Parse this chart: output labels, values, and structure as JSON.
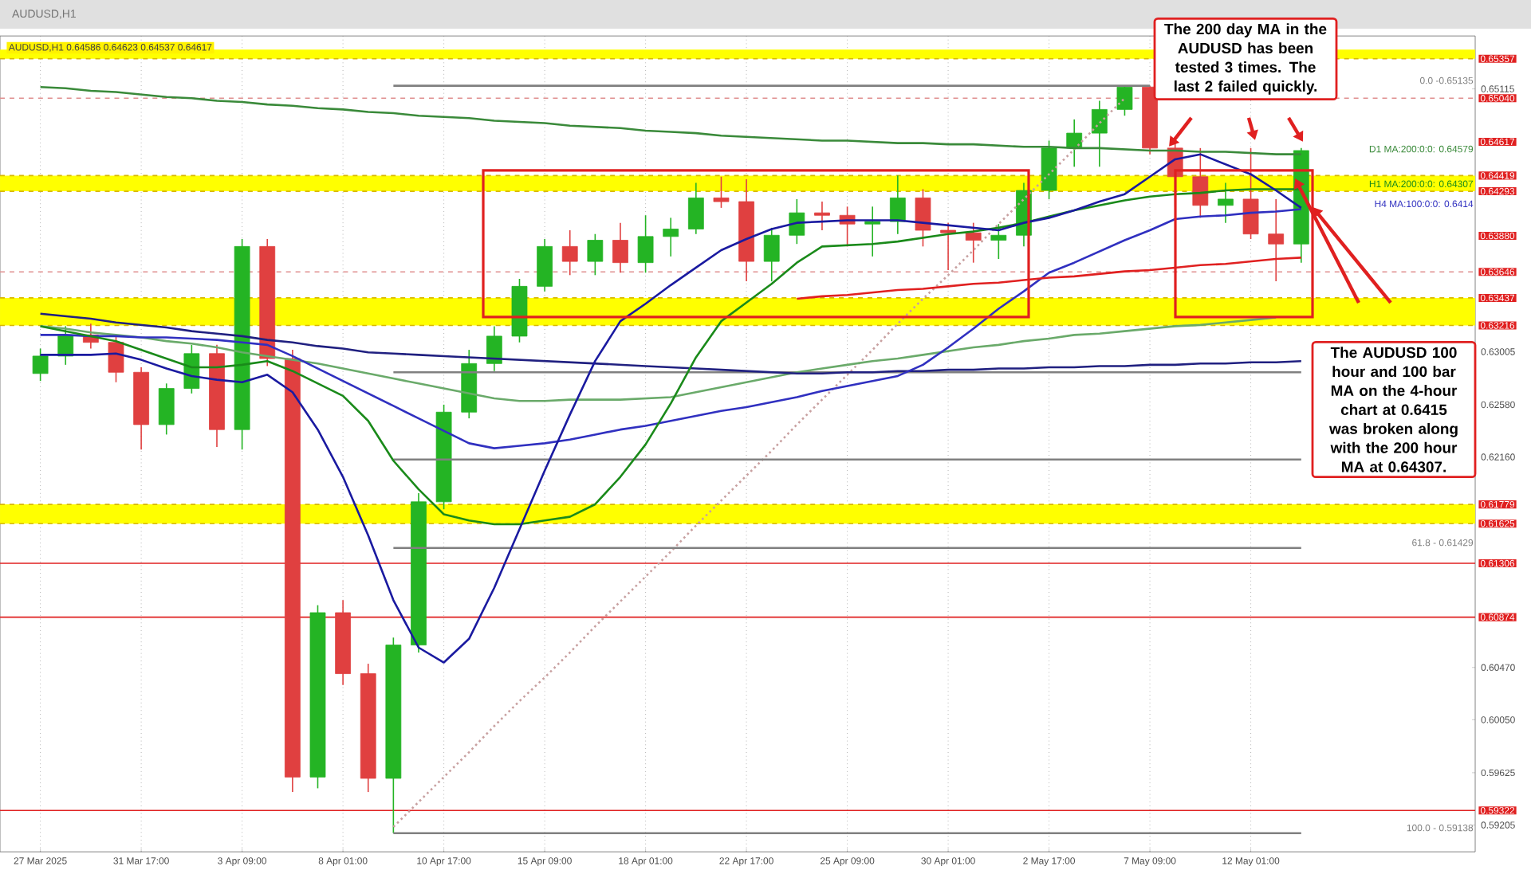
{
  "chart_data": {
    "type": "candlestick",
    "title": "AUDUSD,H1",
    "subtitle": "AUDUSD,H1  0.64586 0.64623 0.64537 0.64617",
    "categories": [
      "27 Mar 2025",
      null,
      null,
      null,
      "31 Mar 17:00",
      null,
      null,
      null,
      "3 Apr 09:00",
      null,
      null,
      null,
      "8 Apr 01:00",
      null,
      null,
      null,
      "10 Apr 17:00",
      null,
      null,
      null,
      "15 Apr 09:00",
      null,
      null,
      null,
      "18 Apr 01:00",
      null,
      null,
      null,
      "22 Apr 17:00",
      null,
      null,
      null,
      "25 Apr 09:00",
      null,
      null,
      null,
      "30 Apr 01:00",
      null,
      null,
      null,
      "2 May 17:00",
      null,
      null,
      null,
      "7 May 09:00",
      null,
      null,
      null,
      "12 May 01:00",
      null,
      null
    ],
    "ohlc": [
      [
        0.6283,
        0.6303,
        0.6277,
        0.6297
      ],
      [
        0.6297,
        0.6321,
        0.629,
        0.6314
      ],
      [
        0.6314,
        0.6323,
        0.6303,
        0.6308
      ],
      [
        0.6308,
        0.6313,
        0.6276,
        0.6284
      ],
      [
        0.6284,
        0.6288,
        0.6222,
        0.6242
      ],
      [
        0.6242,
        0.6275,
        0.6234,
        0.6271
      ],
      [
        0.6271,
        0.6306,
        0.6267,
        0.6299
      ],
      [
        0.6299,
        0.6306,
        0.6224,
        0.6238
      ],
      [
        0.6238,
        0.6391,
        0.6222,
        0.6385
      ],
      [
        0.6385,
        0.6391,
        0.6289,
        0.6295
      ],
      [
        0.6295,
        0.6302,
        0.5947,
        0.5959
      ],
      [
        0.5959,
        0.6097,
        0.595,
        0.6091
      ],
      [
        0.6091,
        0.6101,
        0.6033,
        0.6042
      ],
      [
        0.6042,
        0.605,
        0.5947,
        0.5958
      ],
      [
        0.5958,
        0.6071,
        0.5914,
        0.6065
      ],
      [
        0.6065,
        0.6187,
        0.6059,
        0.618
      ],
      [
        0.618,
        0.6258,
        0.6174,
        0.6252
      ],
      [
        0.6252,
        0.6302,
        0.6247,
        0.6291
      ],
      [
        0.6291,
        0.6321,
        0.6285,
        0.6313
      ],
      [
        0.6313,
        0.6359,
        0.6308,
        0.6353
      ],
      [
        0.6353,
        0.6391,
        0.6349,
        0.6385
      ],
      [
        0.6385,
        0.6398,
        0.6362,
        0.6373
      ],
      [
        0.6373,
        0.6395,
        0.6362,
        0.639
      ],
      [
        0.639,
        0.6404,
        0.6364,
        0.6372
      ],
      [
        0.6372,
        0.641,
        0.6364,
        0.6393
      ],
      [
        0.6393,
        0.6408,
        0.6377,
        0.6399
      ],
      [
        0.6399,
        0.6436,
        0.6395,
        0.6424
      ],
      [
        0.6424,
        0.6441,
        0.6416,
        0.6421
      ],
      [
        0.6421,
        0.6439,
        0.6357,
        0.6373
      ],
      [
        0.6373,
        0.64,
        0.6357,
        0.6394
      ],
      [
        0.6394,
        0.6423,
        0.6387,
        0.6412
      ],
      [
        0.6412,
        0.6421,
        0.6398,
        0.641
      ],
      [
        0.641,
        0.6417,
        0.6385,
        0.6403
      ],
      [
        0.6403,
        0.6417,
        0.6377,
        0.6405
      ],
      [
        0.6405,
        0.6442,
        0.6395,
        0.6424
      ],
      [
        0.6424,
        0.6431,
        0.6385,
        0.6398
      ],
      [
        0.6398,
        0.6404,
        0.6366,
        0.6396
      ],
      [
        0.6396,
        0.6404,
        0.6372,
        0.639
      ],
      [
        0.639,
        0.6403,
        0.6375,
        0.6394
      ],
      [
        0.6394,
        0.6436,
        0.6385,
        0.643
      ],
      [
        0.643,
        0.647,
        0.6423,
        0.6464
      ],
      [
        0.6464,
        0.6487,
        0.6449,
        0.6476
      ],
      [
        0.6476,
        0.6502,
        0.6449,
        0.6495
      ],
      [
        0.6495,
        0.6514,
        0.649,
        0.6513
      ],
      [
        0.6513,
        0.6514,
        0.6459,
        0.6464
      ],
      [
        0.6464,
        0.6472,
        0.6417,
        0.6441
      ],
      [
        0.6441,
        0.6464,
        0.6408,
        0.6418
      ],
      [
        0.6418,
        0.6436,
        0.6404,
        0.6423
      ],
      [
        0.6423,
        0.6464,
        0.6391,
        0.6395
      ],
      [
        0.6395,
        0.6423,
        0.6357,
        0.6387
      ],
      [
        0.6387,
        0.6464,
        0.6372,
        0.6462
      ]
    ],
    "ylim": [
      0.5899,
      0.6554
    ],
    "yticks": [
      0.65115,
      0.63005,
      {
        "value": 0.6258,
        "label": "0.62580"
      },
      {
        "value": 0.6216,
        "label": "0.62160"
      },
      {
        "value": 0.6047,
        "label": "0.60470"
      },
      {
        "value": 0.6005,
        "label": "0.60050"
      },
      0.59625,
      0.59205
    ],
    "grid": "x",
    "series": [
      {
        "type": "line",
        "color": "#c8a0a0",
        "line_style": "dotted",
        "values": [
          null,
          null,
          null,
          null,
          null,
          null,
          null,
          null,
          null,
          null,
          null,
          null,
          null,
          null,
          0.5919,
          0.5939,
          0.5959,
          0.5979,
          0.6,
          0.602,
          0.6039,
          0.6059,
          0.608,
          0.61,
          0.612,
          0.614,
          0.6161,
          0.6181,
          0.6201,
          0.6221,
          0.6242,
          0.6262,
          0.6282,
          0.6302,
          0.6323,
          0.6343,
          0.6362,
          0.6382,
          0.6403,
          0.6423,
          0.6443,
          0.6463,
          0.6484,
          0.6504,
          null,
          null,
          null,
          null,
          null,
          null,
          null
        ]
      },
      {
        "type": "line",
        "name": "0.0 -0.65135",
        "color": "#808080",
        "values": [
          null,
          null,
          null,
          null,
          null,
          null,
          null,
          null,
          null,
          null,
          null,
          null,
          null,
          null,
          0.6514,
          0.6514,
          0.6514,
          0.6514,
          0.6514,
          0.6514,
          0.6514,
          0.6514,
          0.6514,
          0.6514,
          0.6514,
          0.6514,
          0.6514,
          0.6514,
          0.6514,
          0.6514,
          0.6514,
          0.6514,
          0.6514,
          0.6514,
          0.6514,
          0.6514,
          0.6514,
          0.6514,
          0.6514,
          0.6514,
          0.6514,
          0.6514,
          0.6514,
          0.6514,
          0.6514,
          null,
          null,
          null,
          null,
          null,
          null
        ]
      },
      {
        "type": "line",
        "color": "#808080",
        "values": [
          null,
          null,
          null,
          null,
          null,
          null,
          null,
          null,
          null,
          null,
          null,
          null,
          null,
          null,
          0.6284,
          0.6284,
          0.6284,
          0.6284,
          0.6284,
          0.6284,
          0.6284,
          0.6284,
          0.6284,
          0.6284,
          0.6284,
          0.6284,
          0.6284,
          0.6284,
          0.6284,
          0.6284,
          0.6284,
          0.6284,
          0.6284,
          0.6284,
          0.6284,
          0.6284,
          0.6284,
          0.6284,
          0.6284,
          0.6284,
          0.6284,
          0.6284,
          0.6284,
          0.6284,
          0.6284,
          0.6284,
          0.6284,
          0.6284,
          0.6284,
          0.6284,
          0.6284
        ]
      },
      {
        "type": "line",
        "color": "#808080",
        "values": [
          null,
          null,
          null,
          null,
          null,
          null,
          null,
          null,
          null,
          null,
          null,
          null,
          null,
          null,
          0.6214,
          0.6214,
          0.6214,
          0.6214,
          0.6214,
          0.6214,
          0.6214,
          0.6214,
          0.6214,
          0.6214,
          0.6214,
          0.6214,
          0.6214,
          0.6214,
          0.6214,
          0.6214,
          0.6214,
          0.6214,
          0.6214,
          0.6214,
          0.6214,
          0.6214,
          0.6214,
          0.6214,
          0.6214,
          0.6214,
          0.6214,
          0.6214,
          0.6214,
          0.6214,
          0.6214,
          0.6214,
          0.6214,
          0.6214,
          0.6214,
          0.6214,
          0.6214
        ]
      },
      {
        "type": "line",
        "name": "61.8 - 0.61429",
        "color": "#808080",
        "values": [
          null,
          null,
          null,
          null,
          null,
          null,
          null,
          null,
          null,
          null,
          null,
          null,
          null,
          null,
          0.6143,
          0.6143,
          0.6143,
          0.6143,
          0.6143,
          0.6143,
          0.6143,
          0.6143,
          0.6143,
          0.6143,
          0.6143,
          0.6143,
          0.6143,
          0.6143,
          0.6143,
          0.6143,
          0.6143,
          0.6143,
          0.6143,
          0.6143,
          0.6143,
          0.6143,
          0.6143,
          0.6143,
          0.6143,
          0.6143,
          0.6143,
          0.6143,
          0.6143,
          0.6143,
          0.6143,
          0.6143,
          0.6143,
          0.6143,
          0.6143,
          0.6143,
          0.6143
        ]
      },
      {
        "type": "line",
        "name": "100.0 - 0.59138",
        "color": "#808080",
        "values": [
          null,
          null,
          null,
          null,
          null,
          null,
          null,
          null,
          null,
          null,
          null,
          null,
          null,
          null,
          0.5914,
          0.5914,
          0.5914,
          0.5914,
          0.5914,
          0.5914,
          0.5914,
          0.5914,
          0.5914,
          0.5914,
          0.5914,
          0.5914,
          0.5914,
          0.5914,
          0.5914,
          0.5914,
          0.5914,
          0.5914,
          0.5914,
          0.5914,
          0.5914,
          0.5914,
          0.5914,
          0.5914,
          0.5914,
          0.5914,
          0.5914,
          0.5914,
          0.5914,
          0.5914,
          0.5914,
          0.5914,
          0.5914,
          0.5914,
          0.5914,
          0.5914,
          0.5914
        ]
      },
      {
        "type": "line",
        "name": "D1 MA:200:0:0: 0.64579",
        "color": "#3a8a3a",
        "values": [
          0.6513,
          0.6512,
          0.651,
          0.6509,
          0.6507,
          0.6505,
          0.6504,
          0.6502,
          0.6501,
          0.6499,
          0.6498,
          0.6496,
          0.6495,
          0.6493,
          0.6492,
          0.649,
          0.6489,
          0.6488,
          0.6486,
          0.6485,
          0.6484,
          0.6482,
          0.6481,
          0.648,
          0.6478,
          0.6477,
          0.6476,
          0.6474,
          0.6473,
          0.6472,
          0.6471,
          0.647,
          0.647,
          0.6469,
          0.6468,
          0.6468,
          0.6467,
          0.6467,
          0.6466,
          0.6465,
          0.6465,
          0.6464,
          0.6464,
          0.6463,
          0.6462,
          0.6462,
          0.6461,
          0.6461,
          0.646,
          0.6459,
          0.6459
        ]
      },
      {
        "type": "line",
        "color": "#6aaa6a",
        "values": [
          0.6321,
          0.6319,
          0.6316,
          0.6314,
          0.6312,
          0.6309,
          0.6307,
          0.6304,
          0.63,
          0.6297,
          0.6294,
          0.6291,
          0.6287,
          0.6283,
          0.6279,
          0.6275,
          0.6271,
          0.6267,
          0.6263,
          0.6261,
          0.6261,
          0.6262,
          0.6262,
          0.6262,
          0.6263,
          0.6264,
          0.6268,
          0.6272,
          0.6276,
          0.628,
          0.6284,
          0.6287,
          0.629,
          0.6293,
          0.6295,
          0.6298,
          0.6301,
          0.6304,
          0.6306,
          0.6309,
          0.6311,
          0.6314,
          0.6315,
          0.6317,
          0.6319,
          0.6321,
          0.6322,
          0.6324,
          0.6326,
          0.6328,
          null
        ]
      },
      {
        "type": "line",
        "color": "#202080",
        "values": [
          0.6331,
          0.6329,
          0.6327,
          0.6324,
          0.6322,
          0.632,
          0.6317,
          0.6315,
          0.6313,
          0.631,
          0.6308,
          0.6305,
          0.6303,
          0.63,
          0.6299,
          0.6298,
          0.6297,
          0.6296,
          0.6295,
          0.6294,
          0.6293,
          0.6292,
          0.6291,
          0.629,
          0.6289,
          0.6288,
          0.6287,
          0.6286,
          0.6285,
          0.6284,
          0.6283,
          0.6283,
          0.6284,
          0.6284,
          0.6285,
          0.6285,
          0.6286,
          0.6286,
          0.6287,
          0.6287,
          0.6288,
          0.6288,
          0.6289,
          0.6289,
          0.629,
          0.629,
          0.6291,
          0.6291,
          0.6292,
          0.6292,
          0.6293
        ]
      },
      {
        "type": "line",
        "name": "H4 MA:100:0:0: 0.6414",
        "color": "#3030c0",
        "values": [
          0.6314,
          0.6314,
          0.6313,
          0.6313,
          0.6312,
          0.6312,
          0.6311,
          0.631,
          0.6308,
          0.6306,
          0.6297,
          0.6287,
          0.6277,
          0.6267,
          0.6257,
          0.6247,
          0.6237,
          0.6227,
          0.6223,
          0.6225,
          0.6227,
          0.623,
          0.6234,
          0.6238,
          0.6241,
          0.6245,
          0.6249,
          0.6253,
          0.6256,
          0.626,
          0.6264,
          0.6269,
          0.6273,
          0.6277,
          0.6281,
          0.629,
          0.6304,
          0.6319,
          0.6335,
          0.6349,
          0.6364,
          0.6372,
          0.6381,
          0.639,
          0.6398,
          0.6407,
          0.6409,
          0.641,
          0.6412,
          0.6413,
          0.6415
        ]
      },
      {
        "type": "line",
        "color": "#e02020",
        "values": [
          null,
          null,
          null,
          null,
          null,
          null,
          null,
          null,
          null,
          null,
          null,
          null,
          null,
          null,
          null,
          null,
          null,
          null,
          null,
          null,
          null,
          null,
          null,
          null,
          null,
          null,
          null,
          null,
          null,
          null,
          0.6343,
          0.6345,
          0.6346,
          0.6348,
          0.635,
          0.6351,
          0.6353,
          0.6355,
          0.6356,
          0.6358,
          0.636,
          0.6361,
          0.6363,
          0.6365,
          0.6366,
          0.6368,
          0.637,
          0.6371,
          0.6373,
          0.6375,
          0.6376
        ]
      },
      {
        "type": "line",
        "name": "H1 MA:200:0:0: 0.64307",
        "color": "#1a8a1a",
        "values": [
          0.6321,
          0.6317,
          0.6313,
          0.6309,
          0.6302,
          0.6295,
          0.6288,
          0.6288,
          0.629,
          0.6293,
          0.6285,
          0.6275,
          0.6265,
          0.6245,
          0.6213,
          0.619,
          0.617,
          0.6165,
          0.6162,
          0.6162,
          0.6165,
          0.6168,
          0.6178,
          0.62,
          0.6226,
          0.6259,
          0.6296,
          0.6325,
          0.634,
          0.6355,
          0.6372,
          0.6385,
          0.6386,
          0.6387,
          0.6389,
          0.6392,
          0.6395,
          0.6397,
          0.64,
          0.6404,
          0.6409,
          0.6414,
          0.6418,
          0.6422,
          0.6425,
          0.6427,
          0.6428,
          0.643,
          0.6431,
          0.6431,
          0.6431
        ]
      },
      {
        "type": "line",
        "color": "#1a1aa0",
        "values": [
          0.6298,
          0.6298,
          0.6298,
          0.6299,
          0.6294,
          0.6287,
          0.6281,
          0.6278,
          0.6276,
          0.6282,
          0.6268,
          0.6238,
          0.62,
          0.6153,
          0.6101,
          0.6063,
          0.6051,
          0.607,
          0.6111,
          0.6158,
          0.6205,
          0.625,
          0.6293,
          0.6325,
          0.6339,
          0.6354,
          0.6368,
          0.6382,
          0.6391,
          0.6399,
          0.6404,
          0.6405,
          0.6406,
          0.6406,
          0.6406,
          0.6404,
          0.6402,
          0.64,
          0.6398,
          0.6404,
          0.6408,
          0.6414,
          0.6421,
          0.6427,
          0.6441,
          0.6455,
          0.6459,
          0.6451,
          0.6443,
          0.643,
          0.6416
        ]
      }
    ],
    "bands": [
      {
        "axis": "y",
        "from": 0.65357,
        "to": 0.6543,
        "color": "#ffff00"
      },
      {
        "axis": "y",
        "from": 0.64293,
        "to": 0.64419,
        "color": "#ffff00"
      },
      {
        "axis": "y",
        "from": 0.63216,
        "to": 0.63437,
        "color": "#ffff00"
      },
      {
        "axis": "y",
        "from": 0.61625,
        "to": 0.61779,
        "color": "#ffff00"
      }
    ],
    "ref_lines": [
      {
        "axis": "y",
        "value": 0.65357,
        "label": "0.65357",
        "color": "#d8b800",
        "line_style": "dashed"
      },
      {
        "axis": "y",
        "value": 0.6504,
        "label": "0.65040",
        "color": "#e09090",
        "line_style": "dashed"
      },
      {
        "axis": "y",
        "value": 0.64419,
        "label": "0.64419",
        "color": "#d8b800",
        "line_style": "dashed"
      },
      {
        "axis": "y",
        "value": 0.64293,
        "label": "0.64293",
        "color": "#d8b800",
        "line_style": "dashed"
      },
      {
        "axis": "y",
        "value": 0.63646,
        "label": "0.63646",
        "color": "#e09090",
        "line_style": "dashed"
      },
      {
        "axis": "y",
        "value": 0.63437,
        "label": "0.63437",
        "color": "#d8b800",
        "line_style": "dashed"
      },
      {
        "axis": "y",
        "value": 0.63216,
        "label": "0.63216",
        "color": "#d8b800",
        "line_style": "dashed"
      },
      {
        "axis": "y",
        "value": 0.61779,
        "label": "0.61779",
        "color": "#d8b800",
        "line_style": "dashed"
      },
      {
        "axis": "y",
        "value": 0.61625,
        "label": "0.61625",
        "color": "#d8b800",
        "line_style": "dashed"
      },
      {
        "axis": "y",
        "value": 0.61306,
        "label": "0.61306",
        "color": "#e02020",
        "line_style": "solid"
      },
      {
        "axis": "y",
        "value": 0.60874,
        "label": "0.60874",
        "color": "#e02020",
        "line_style": "solid"
      },
      {
        "axis": "y",
        "value": 0.59322,
        "label": "0.59322",
        "color": "#e02020",
        "line_style": "solid"
      }
    ],
    "annotations": [
      "The 200 day MA in the AUDUSD has been tested 3 times. The last 2 failed quickly.",
      "The AUDUSD 100 hour and 100 bar MA on the 4-hour chart at 0.6415 was broken along with the 200 hour MA at 0.64307.",
      "0.63880",
      "0.64617"
    ]
  }
}
